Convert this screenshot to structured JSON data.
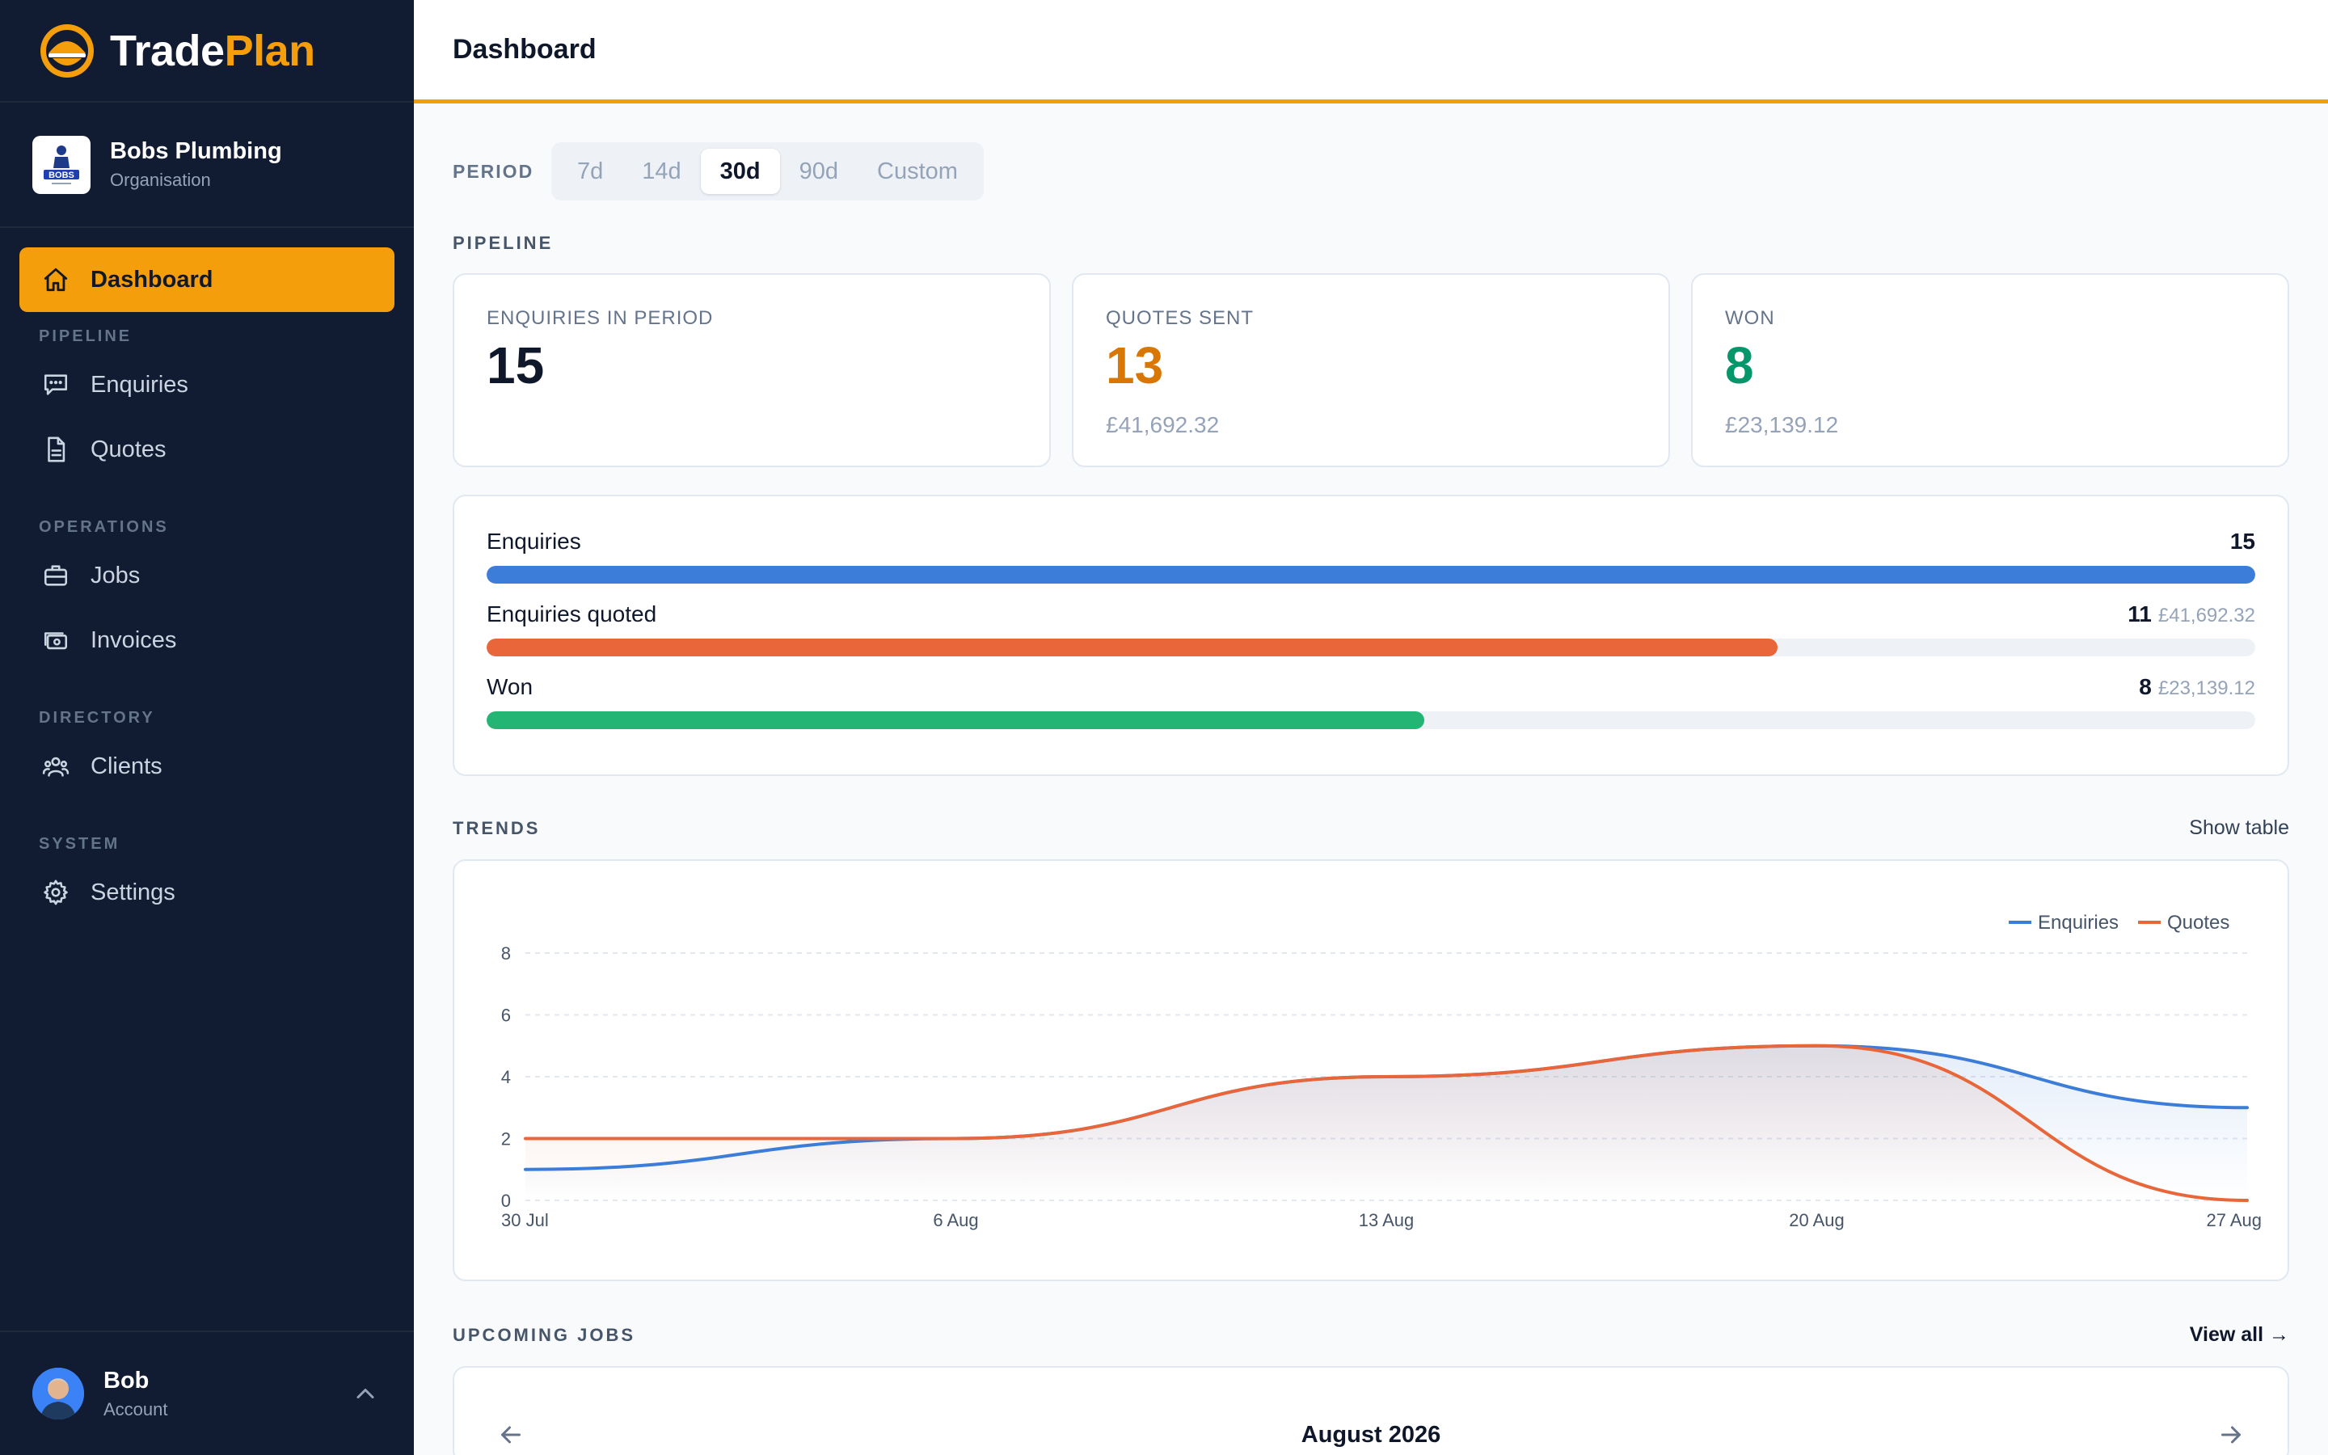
{
  "brand": {
    "name_a": "Trade",
    "name_b": "Plan"
  },
  "org": {
    "name": "Bobs Plumbing",
    "subtitle": "Organisation"
  },
  "nav": {
    "dashboard": "Dashboard",
    "section_pipeline": "PIPELINE",
    "enquiries": "Enquiries",
    "quotes": "Quotes",
    "section_operations": "OPERATIONS",
    "jobs": "Jobs",
    "invoices": "Invoices",
    "section_directory": "DIRECTORY",
    "clients": "Clients",
    "section_system": "SYSTEM",
    "settings": "Settings"
  },
  "user": {
    "name": "Bob",
    "subtitle": "Account"
  },
  "header": {
    "title": "Dashboard"
  },
  "period": {
    "label": "PERIOD",
    "options": [
      "7d",
      "14d",
      "30d",
      "90d",
      "Custom"
    ],
    "selected": "30d"
  },
  "pipeline": {
    "label": "PIPELINE",
    "stats": [
      {
        "label": "ENQUIRIES IN PERIOD",
        "value": "15",
        "sub": ""
      },
      {
        "label": "QUOTES SENT",
        "value": "13",
        "sub": "£41,692.32"
      },
      {
        "label": "WON",
        "value": "8",
        "sub": "£23,139.12"
      }
    ],
    "funnel": [
      {
        "name": "Enquiries",
        "count": "15",
        "amount": "",
        "fraction": 1.0
      },
      {
        "name": "Enquiries quoted",
        "count": "11",
        "amount": "£41,692.32",
        "fraction": 0.73
      },
      {
        "name": "Won",
        "count": "8",
        "amount": "£23,139.12",
        "fraction": 0.53
      }
    ]
  },
  "trends": {
    "label": "TRENDS",
    "toggle": "Show table"
  },
  "chart_data": {
    "type": "line",
    "x": [
      "30 Jul",
      "6 Aug",
      "13 Aug",
      "20 Aug",
      "27 Aug"
    ],
    "ylim": [
      0,
      8
    ],
    "yticks": [
      0,
      2,
      4,
      6,
      8
    ],
    "grid": true,
    "legend": "top-right",
    "series": [
      {
        "name": "Enquiries",
        "color": "#3b7dd8",
        "values": [
          1,
          2,
          4,
          5,
          3
        ]
      },
      {
        "name": "Quotes",
        "color": "#e8663a",
        "values": [
          2,
          2,
          4,
          5,
          0
        ]
      }
    ]
  },
  "upcoming": {
    "label": "UPCOMING JOBS",
    "view_all": "View all →",
    "month": "August 2026"
  },
  "colors": {
    "sidebar_bg": "#111b31",
    "accent": "#f59e0b",
    "quotes_orange": "#d97706",
    "won_green": "#059669",
    "bar_blue": "#3b7dd8",
    "bar_orange": "#e8663a",
    "bar_green": "#22b573"
  }
}
